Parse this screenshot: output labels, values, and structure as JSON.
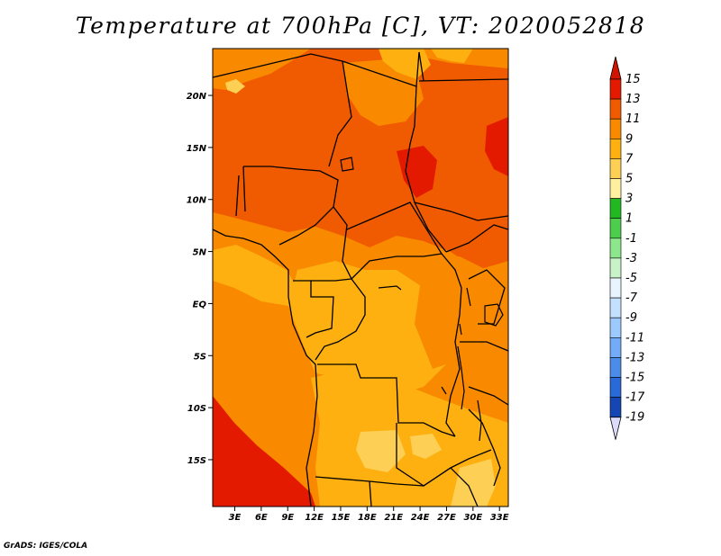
{
  "title": "Temperature at 700hPa [C], VT: 2020052818",
  "credit": "GrADS: IGES/COLA",
  "map": {
    "lat_range": [
      -19.5,
      24.5
    ],
    "lon_range": [
      0.5,
      34
    ],
    "lat_ticks": [
      {
        "value": 20,
        "label": "20N"
      },
      {
        "value": 15,
        "label": "15N"
      },
      {
        "value": 10,
        "label": "10N"
      },
      {
        "value": 5,
        "label": "5N"
      },
      {
        "value": 0,
        "label": "EQ"
      },
      {
        "value": -5,
        "label": "5S"
      },
      {
        "value": -10,
        "label": "10S"
      },
      {
        "value": -15,
        "label": "15S"
      }
    ],
    "lon_ticks": [
      {
        "value": 3,
        "label": "3E"
      },
      {
        "value": 6,
        "label": "6E"
      },
      {
        "value": 9,
        "label": "9E"
      },
      {
        "value": 12,
        "label": "12E"
      },
      {
        "value": 15,
        "label": "15E"
      },
      {
        "value": 18,
        "label": "18E"
      },
      {
        "value": 21,
        "label": "21E"
      },
      {
        "value": 24,
        "label": "24E"
      },
      {
        "value": 27,
        "label": "27E"
      },
      {
        "value": 30,
        "label": "30E"
      },
      {
        "value": 33,
        "label": "33E"
      }
    ]
  },
  "colorbar": {
    "levels": [
      15,
      13,
      11,
      9,
      7,
      5,
      3,
      1,
      -1,
      -3,
      -5,
      -7,
      -9,
      -11,
      -13,
      -15,
      -17,
      -19
    ],
    "colors": [
      "#e41a00",
      "#f05a00",
      "#f98a00",
      "#fdb010",
      "#fdd055",
      "#fff0a0",
      "#22b822",
      "#4ccd4c",
      "#8ce68c",
      "#c8f2c8",
      "#e8f4ff",
      "#c4e0ff",
      "#9ccaff",
      "#72acf8",
      "#4a8ce8",
      "#2a6ad8",
      "#1446b4",
      "#0a2a90",
      "#061670"
    ],
    "top_arrow_color": "#d01400",
    "bottom_arrow_color": "#dcdcfa"
  }
}
